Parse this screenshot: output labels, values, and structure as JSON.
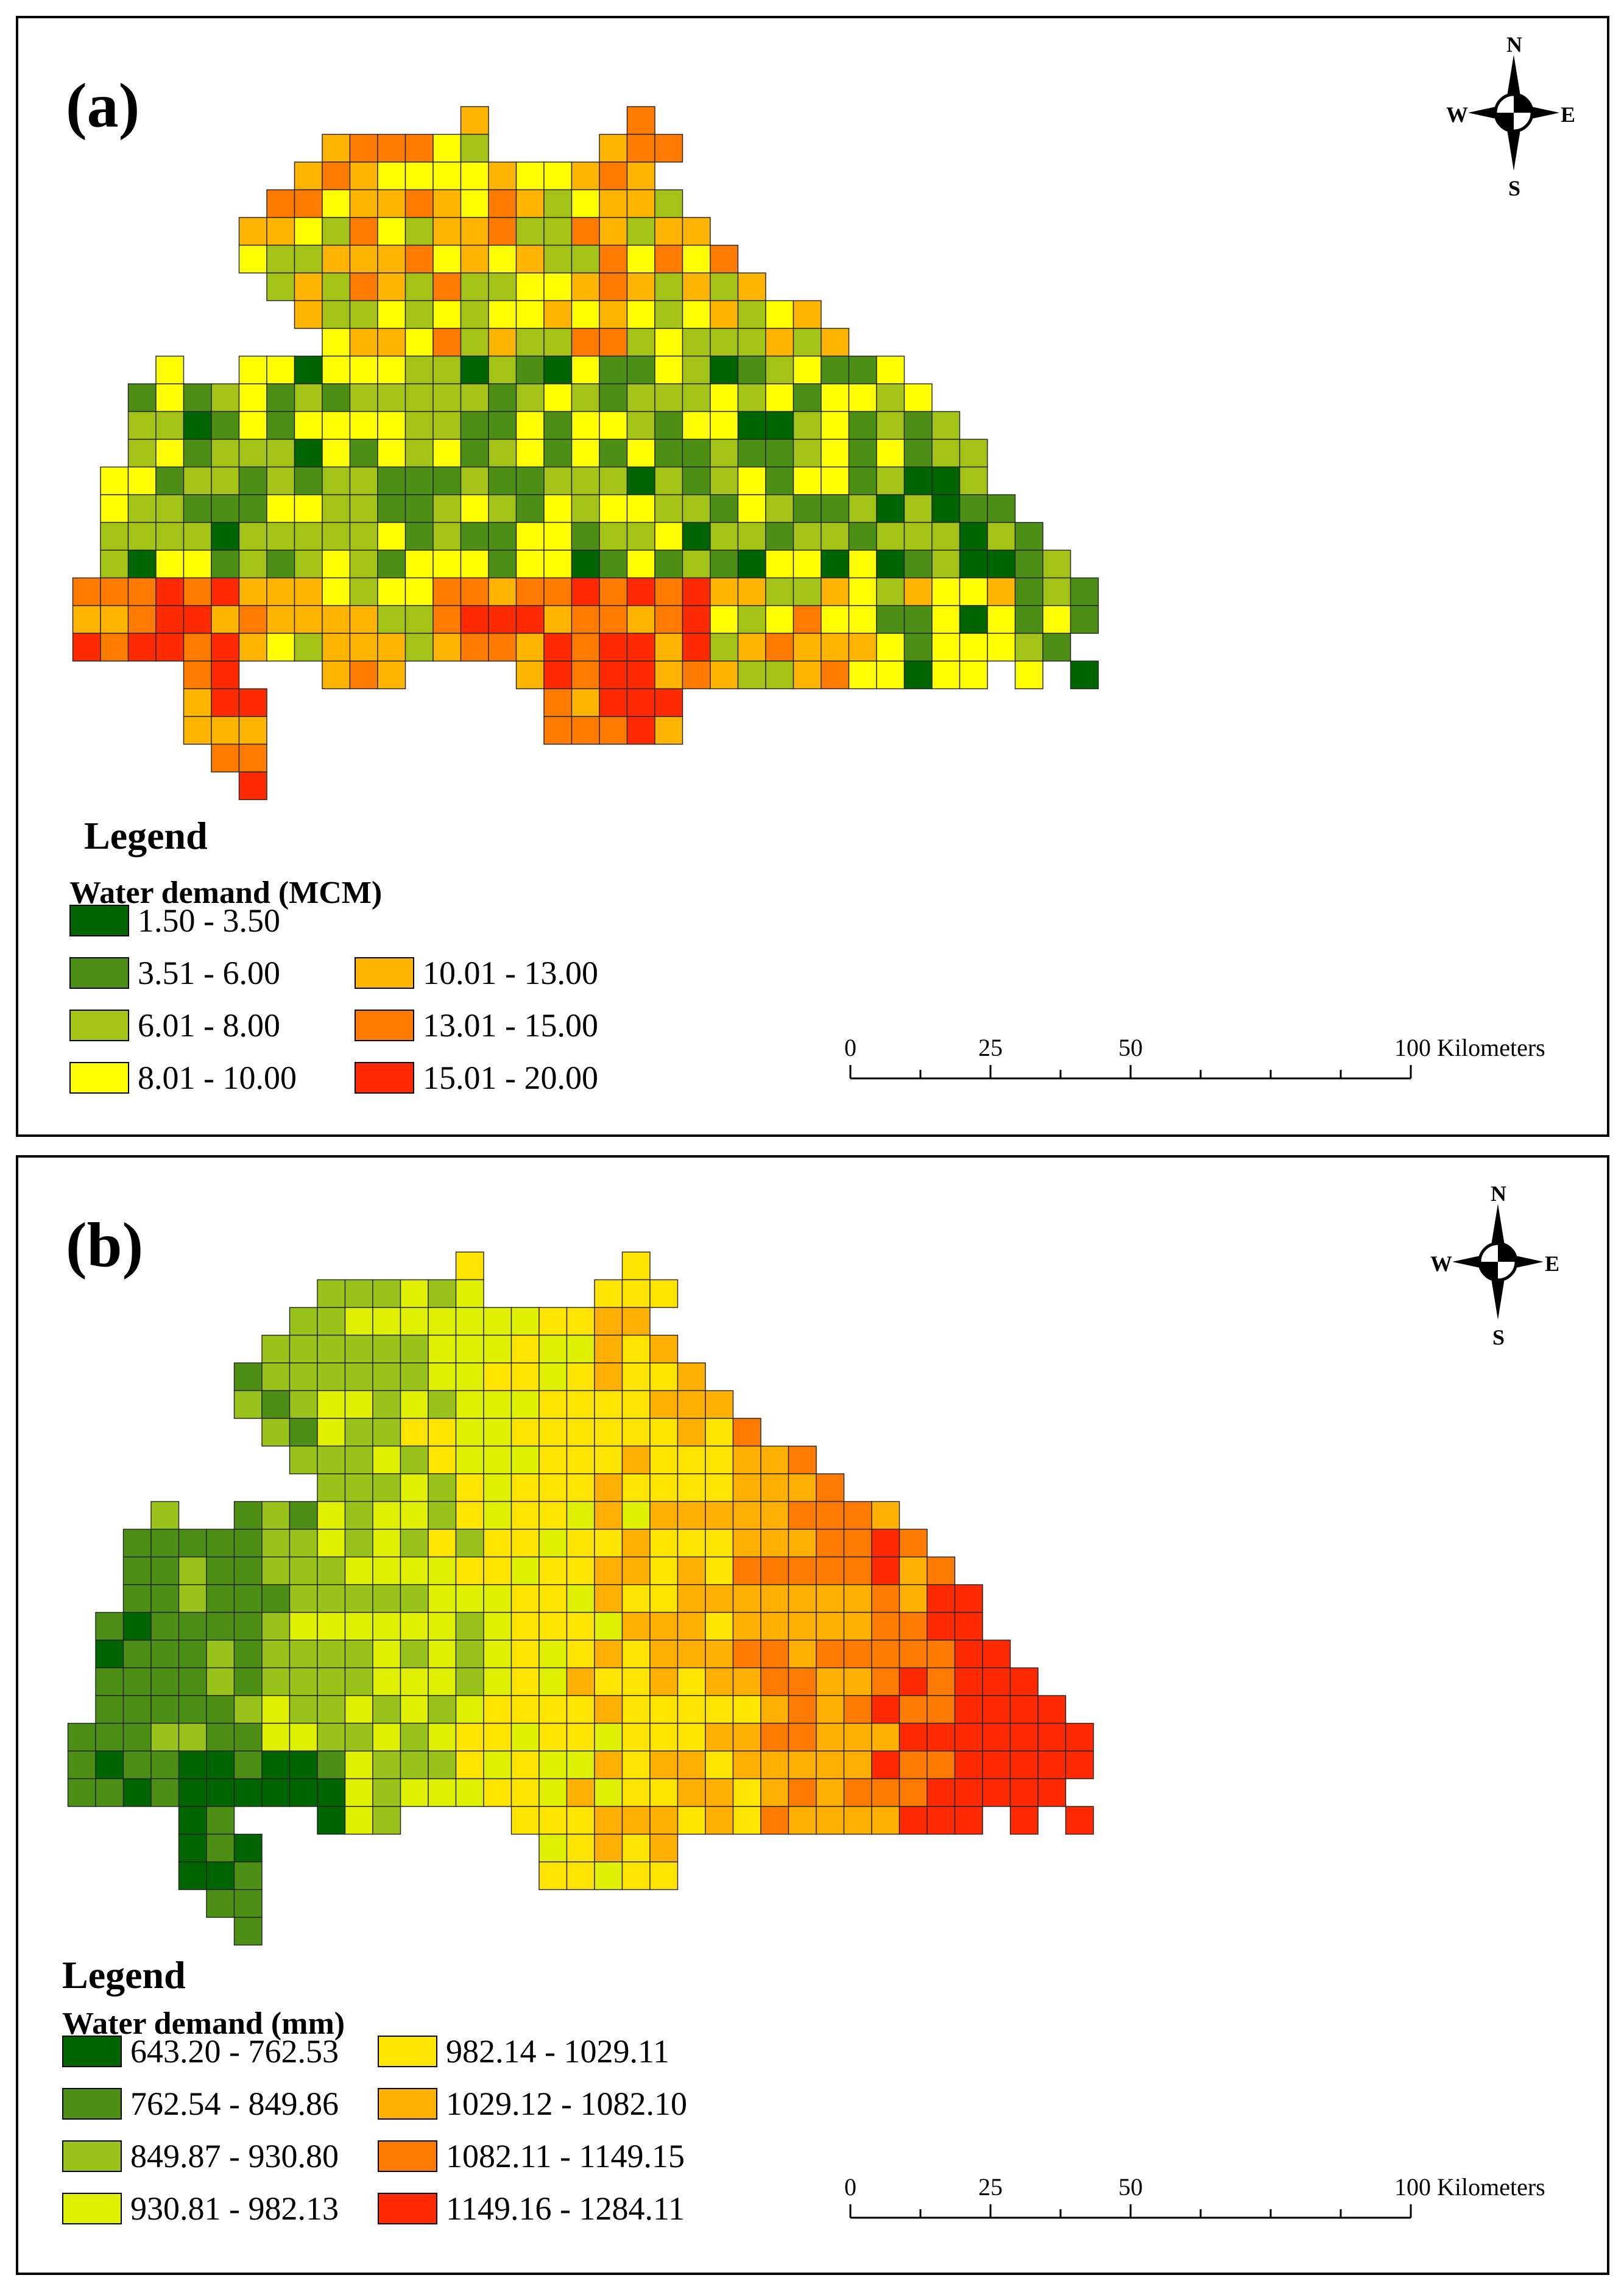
{
  "panels": [
    {
      "label": "(a)",
      "legend_title": "Legend",
      "legend_subtitle": "Water demand (MCM)",
      "classes": [
        {
          "range": "1.50 - 3.50",
          "color": "#006400"
        },
        {
          "range": "3.51 - 6.00",
          "color": "#4c8f14"
        },
        {
          "range": "6.01 - 8.00",
          "color": "#a3c416"
        },
        {
          "range": "8.01 - 10.00",
          "color": "#ffff00"
        },
        {
          "range": "10.01 - 13.00",
          "color": "#ffb400"
        },
        {
          "range": "13.01 - 15.00",
          "color": "#ff7b00"
        },
        {
          "range": "15.01 - 20.00",
          "color": "#ff2a00"
        }
      ],
      "compass": {
        "n": "N",
        "s": "S",
        "e": "E",
        "w": "W"
      },
      "scale": {
        "ticks": [
          "0",
          "25",
          "50",
          "100 Kilometers"
        ]
      }
    },
    {
      "label": "(b)",
      "legend_title": "Legend",
      "legend_subtitle": "Water demand (mm)",
      "classes": [
        {
          "range": "643.20 - 762.53",
          "color": "#006400"
        },
        {
          "range": "762.54 - 849.86",
          "color": "#4c8f14"
        },
        {
          "range": "849.87 - 930.80",
          "color": "#99c21a"
        },
        {
          "range": "930.81 - 982.13",
          "color": "#dff000"
        },
        {
          "range": "982.14 - 1029.11",
          "color": "#ffe400"
        },
        {
          "range": "1029.12 - 1082.10",
          "color": "#ffb000"
        },
        {
          "range": "1082.11 - 1149.15",
          "color": "#ff7a00"
        },
        {
          "range": "1149.16 - 1284.11",
          "color": "#ff2a00"
        }
      ],
      "compass": {
        "n": "N",
        "s": "S",
        "e": "E",
        "w": "W"
      },
      "scale": {
        "ticks": [
          "0",
          "25",
          "50",
          "100 Kilometers"
        ]
      }
    }
  ]
}
